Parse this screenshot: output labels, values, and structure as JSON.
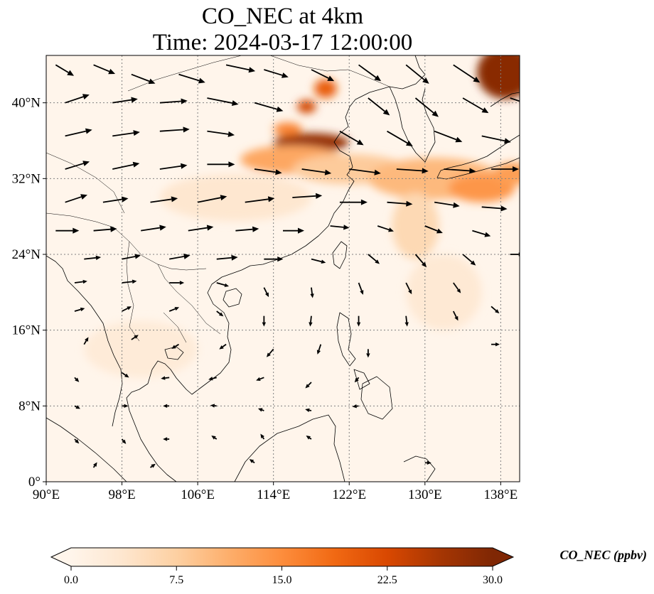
{
  "title": {
    "line1": "CO_NEC at 4km",
    "line2": "Time: 2024-03-17 12:00:00"
  },
  "map": {
    "extent": {
      "lon_min": 90,
      "lon_max": 140,
      "lat_min": 0,
      "lat_max": 45
    },
    "lon_ticks": [
      {
        "value": 90,
        "label": "90°E"
      },
      {
        "value": 98,
        "label": "98°E"
      },
      {
        "value": 106,
        "label": "106°E"
      },
      {
        "value": 114,
        "label": "114°E"
      },
      {
        "value": 122,
        "label": "122°E"
      },
      {
        "value": 130,
        "label": "130°E"
      },
      {
        "value": 138,
        "label": "138°E"
      }
    ],
    "lat_ticks": [
      {
        "value": 0,
        "label": "0°"
      },
      {
        "value": 8,
        "label": "8°N"
      },
      {
        "value": 16,
        "label": "16°N"
      },
      {
        "value": 24,
        "label": "24°N"
      },
      {
        "value": 32,
        "label": "32°N"
      },
      {
        "value": 40,
        "label": "40°N"
      }
    ],
    "gridlines": true,
    "background_color": "#fff5eb",
    "concentration_blobs": [
      {
        "lon": 118,
        "lat": 35.8,
        "rlon": 4.0,
        "rlat": 1.0,
        "value": 28
      },
      {
        "lon": 115.5,
        "lat": 37.2,
        "rlon": 1.5,
        "rlat": 0.7,
        "value": 16
      },
      {
        "lon": 117.5,
        "lat": 39.6,
        "rlon": 1.0,
        "rlat": 0.7,
        "value": 23
      },
      {
        "lon": 119.5,
        "lat": 41.5,
        "rlon": 1.2,
        "rlat": 1.0,
        "value": 20
      },
      {
        "lon": 116,
        "lat": 34,
        "rlon": 5.5,
        "rlat": 1.5,
        "value": 12
      },
      {
        "lon": 122,
        "lat": 33,
        "rlon": 6,
        "rlat": 1.6,
        "value": 8
      },
      {
        "lon": 131,
        "lat": 32,
        "rlon": 7,
        "rlat": 2.2,
        "value": 10
      },
      {
        "lon": 136,
        "lat": 31,
        "rlon": 3.5,
        "rlat": 1.5,
        "value": 14
      },
      {
        "lon": 139.2,
        "lat": 32.5,
        "rlon": 2.0,
        "rlat": 1.2,
        "value": 13
      },
      {
        "lon": 129,
        "lat": 27,
        "rlon": 2.5,
        "rlat": 3.5,
        "value": 6
      },
      {
        "lon": 138.5,
        "lat": 43.2,
        "rlon": 3.0,
        "rlat": 2.8,
        "value": 29
      },
      {
        "lon": 132,
        "lat": 20,
        "rlon": 4,
        "rlat": 4,
        "value": 3
      },
      {
        "lon": 100,
        "lat": 14,
        "rlon": 6,
        "rlat": 3,
        "value": 2.5
      },
      {
        "lon": 110,
        "lat": 30,
        "rlon": 8,
        "rlat": 2.5,
        "value": 3.5
      }
    ],
    "wind_vectors": [
      {
        "lon": 91,
        "lat": 44,
        "u": 1.0,
        "v": -0.6,
        "s": 1.0
      },
      {
        "lon": 95,
        "lat": 44,
        "u": 1.2,
        "v": -0.5,
        "s": 1.1
      },
      {
        "lon": 99,
        "lat": 43,
        "u": 1.3,
        "v": -0.5,
        "s": 1.2
      },
      {
        "lon": 104,
        "lat": 43,
        "u": 1.3,
        "v": -0.4,
        "s": 1.3
      },
      {
        "lon": 109,
        "lat": 44,
        "u": 1.4,
        "v": -0.3,
        "s": 1.4
      },
      {
        "lon": 113,
        "lat": 43.5,
        "u": 1.3,
        "v": -0.4,
        "s": 1.2
      },
      {
        "lon": 118,
        "lat": 43.5,
        "u": 1.2,
        "v": -0.6,
        "s": 1.2
      },
      {
        "lon": 123,
        "lat": 44,
        "u": 1.1,
        "v": -0.8,
        "s": 1.3
      },
      {
        "lon": 128,
        "lat": 44,
        "u": 1.1,
        "v": -0.9,
        "s": 1.4
      },
      {
        "lon": 133,
        "lat": 44,
        "u": 1.2,
        "v": -0.8,
        "s": 1.5
      },
      {
        "lon": 92,
        "lat": 40,
        "u": 1.2,
        "v": 0.4,
        "s": 1.2
      },
      {
        "lon": 97,
        "lat": 40,
        "u": 1.3,
        "v": 0.2,
        "s": 1.2
      },
      {
        "lon": 102,
        "lat": 40,
        "u": 1.4,
        "v": 0.1,
        "s": 1.3
      },
      {
        "lon": 107,
        "lat": 40.5,
        "u": 1.5,
        "v": -0.3,
        "s": 1.5
      },
      {
        "lon": 112,
        "lat": 40,
        "u": 1.4,
        "v": -0.4,
        "s": 1.4
      },
      {
        "lon": 124,
        "lat": 40.5,
        "u": 1.0,
        "v": -0.8,
        "s": 1.3
      },
      {
        "lon": 129,
        "lat": 40.5,
        "u": 1.1,
        "v": -0.9,
        "s": 1.4
      },
      {
        "lon": 134,
        "lat": 40.5,
        "u": 1.2,
        "v": -0.7,
        "s": 1.4
      },
      {
        "lon": 139,
        "lat": 40.5,
        "u": 1.2,
        "v": -0.4,
        "s": 1.2
      },
      {
        "lon": 92,
        "lat": 36.5,
        "u": 1.3,
        "v": 0.3,
        "s": 1.3
      },
      {
        "lon": 97,
        "lat": 36.5,
        "u": 1.4,
        "v": 0.2,
        "s": 1.3
      },
      {
        "lon": 102,
        "lat": 37,
        "u": 1.5,
        "v": 0.1,
        "s": 1.4
      },
      {
        "lon": 107,
        "lat": 37,
        "u": 1.4,
        "v": -0.2,
        "s": 1.3
      },
      {
        "lon": 121,
        "lat": 37,
        "u": 1.2,
        "v": -0.7,
        "s": 1.3
      },
      {
        "lon": 126,
        "lat": 37,
        "u": 1.2,
        "v": -0.7,
        "s": 1.4
      },
      {
        "lon": 131,
        "lat": 37,
        "u": 1.3,
        "v": -0.5,
        "s": 1.4
      },
      {
        "lon": 136,
        "lat": 36.5,
        "u": 1.4,
        "v": -0.3,
        "s": 1.4
      },
      {
        "lon": 92,
        "lat": 33,
        "u": 1.3,
        "v": 0.4,
        "s": 1.2
      },
      {
        "lon": 97,
        "lat": 33,
        "u": 1.4,
        "v": 0.3,
        "s": 1.3
      },
      {
        "lon": 102,
        "lat": 33,
        "u": 1.4,
        "v": 0.2,
        "s": 1.3
      },
      {
        "lon": 107,
        "lat": 33.5,
        "u": 1.4,
        "v": 0.0,
        "s": 1.3
      },
      {
        "lon": 112,
        "lat": 33,
        "u": 1.4,
        "v": -0.2,
        "s": 1.3
      },
      {
        "lon": 117,
        "lat": 33,
        "u": 1.4,
        "v": -0.2,
        "s": 1.4
      },
      {
        "lon": 122,
        "lat": 33,
        "u": 1.5,
        "v": -0.2,
        "s": 1.5
      },
      {
        "lon": 127,
        "lat": 33,
        "u": 1.5,
        "v": -0.1,
        "s": 1.5
      },
      {
        "lon": 132,
        "lat": 33,
        "u": 1.5,
        "v": -0.1,
        "s": 1.5
      },
      {
        "lon": 137,
        "lat": 33,
        "u": 1.4,
        "v": 0.0,
        "s": 1.3
      },
      {
        "lon": 92,
        "lat": 29.5,
        "u": 1.2,
        "v": 0.4,
        "s": 1.1
      },
      {
        "lon": 96,
        "lat": 29.5,
        "u": 1.3,
        "v": 0.2,
        "s": 1.2
      },
      {
        "lon": 101,
        "lat": 29.5,
        "u": 1.4,
        "v": 0.2,
        "s": 1.3
      },
      {
        "lon": 106,
        "lat": 29.5,
        "u": 1.5,
        "v": 0.3,
        "s": 1.4
      },
      {
        "lon": 111,
        "lat": 29.5,
        "u": 1.5,
        "v": 0.2,
        "s": 1.4
      },
      {
        "lon": 116,
        "lat": 30,
        "u": 1.5,
        "v": 0.1,
        "s": 1.4
      },
      {
        "lon": 121,
        "lat": 29.5,
        "u": 1.4,
        "v": 0.0,
        "s": 1.3
      },
      {
        "lon": 126,
        "lat": 29.5,
        "u": 1.3,
        "v": -0.1,
        "s": 1.2
      },
      {
        "lon": 131,
        "lat": 29.5,
        "u": 1.3,
        "v": -0.2,
        "s": 1.2
      },
      {
        "lon": 136,
        "lat": 29,
        "u": 1.3,
        "v": -0.1,
        "s": 1.2
      },
      {
        "lon": 91,
        "lat": 26.5,
        "u": 1.2,
        "v": 0.0,
        "s": 1.1
      },
      {
        "lon": 95,
        "lat": 26.5,
        "u": 1.2,
        "v": 0.1,
        "s": 1.1
      },
      {
        "lon": 100,
        "lat": 26.5,
        "u": 1.3,
        "v": 0.2,
        "s": 1.2
      },
      {
        "lon": 105,
        "lat": 26.5,
        "u": 1.3,
        "v": 0.2,
        "s": 1.2
      },
      {
        "lon": 110,
        "lat": 26.5,
        "u": 1.2,
        "v": 0.1,
        "s": 1.1
      },
      {
        "lon": 115,
        "lat": 26.5,
        "u": 1.1,
        "v": 0.0,
        "s": 1.0
      },
      {
        "lon": 120,
        "lat": 27,
        "u": 1.0,
        "v": -0.1,
        "s": 0.9
      },
      {
        "lon": 125,
        "lat": 27,
        "u": 0.9,
        "v": -0.3,
        "s": 0.8
      },
      {
        "lon": 130,
        "lat": 27,
        "u": 1.0,
        "v": -0.4,
        "s": 0.9
      },
      {
        "lon": 135,
        "lat": 26.5,
        "u": 1.0,
        "v": -0.3,
        "s": 0.9
      },
      {
        "lon": 94,
        "lat": 23.5,
        "u": 0.9,
        "v": 0.1,
        "s": 0.8
      },
      {
        "lon": 98,
        "lat": 23.5,
        "u": 1.0,
        "v": 0.2,
        "s": 0.9
      },
      {
        "lon": 103,
        "lat": 23.5,
        "u": 1.1,
        "v": 0.2,
        "s": 1.0
      },
      {
        "lon": 108,
        "lat": 23.5,
        "u": 1.1,
        "v": 0.1,
        "s": 1.0
      },
      {
        "lon": 113,
        "lat": 23.5,
        "u": 1.0,
        "v": 0.0,
        "s": 0.9
      },
      {
        "lon": 118,
        "lat": 23.5,
        "u": 0.8,
        "v": -0.2,
        "s": 0.7
      },
      {
        "lon": 124,
        "lat": 24,
        "u": 0.6,
        "v": -0.5,
        "s": 0.7
      },
      {
        "lon": 129,
        "lat": 24,
        "u": 0.6,
        "v": -0.7,
        "s": 0.8
      },
      {
        "lon": 134,
        "lat": 24,
        "u": 0.7,
        "v": -0.6,
        "s": 0.8
      },
      {
        "lon": 139,
        "lat": 24,
        "u": 0.8,
        "v": 0.0,
        "s": 0.6
      },
      {
        "lon": 93,
        "lat": 21,
        "u": 0.8,
        "v": 0.1,
        "s": 0.6
      },
      {
        "lon": 98,
        "lat": 21,
        "u": 0.9,
        "v": 0.1,
        "s": 0.7
      },
      {
        "lon": 103,
        "lat": 21,
        "u": 0.9,
        "v": 0.0,
        "s": 0.7
      },
      {
        "lon": 108,
        "lat": 21,
        "u": 0.7,
        "v": -0.2,
        "s": 0.6
      },
      {
        "lon": 113,
        "lat": 20.5,
        "u": 0.3,
        "v": -0.6,
        "s": 0.5
      },
      {
        "lon": 118,
        "lat": 20.5,
        "u": 0.1,
        "v": -0.8,
        "s": 0.5
      },
      {
        "lon": 123,
        "lat": 21,
        "u": 0.3,
        "v": -0.8,
        "s": 0.6
      },
      {
        "lon": 128,
        "lat": 21,
        "u": 0.4,
        "v": -0.8,
        "s": 0.6
      },
      {
        "lon": 133,
        "lat": 21,
        "u": 0.5,
        "v": -0.7,
        "s": 0.6
      },
      {
        "lon": 93,
        "lat": 18,
        "u": 0.7,
        "v": 0.2,
        "s": 0.5
      },
      {
        "lon": 98,
        "lat": 18,
        "u": 0.6,
        "v": 0.3,
        "s": 0.5
      },
      {
        "lon": 103,
        "lat": 18,
        "u": 0.5,
        "v": 0.2,
        "s": 0.5
      },
      {
        "lon": 108,
        "lat": 18,
        "u": 0.4,
        "v": -0.3,
        "s": 0.4
      },
      {
        "lon": 113,
        "lat": 17.5,
        "u": 0.0,
        "v": -0.9,
        "s": 0.5
      },
      {
        "lon": 118,
        "lat": 17.5,
        "u": -0.1,
        "v": -0.9,
        "s": 0.5
      },
      {
        "lon": 123,
        "lat": 17.5,
        "u": 0.0,
        "v": -0.9,
        "s": 0.5
      },
      {
        "lon": 128,
        "lat": 17.5,
        "u": 0.1,
        "v": -0.9,
        "s": 0.5
      },
      {
        "lon": 133,
        "lat": 18,
        "u": 0.4,
        "v": -0.8,
        "s": 0.5
      },
      {
        "lon": 137,
        "lat": 18.5,
        "u": 0.7,
        "v": -0.6,
        "s": 0.5
      },
      {
        "lon": 94,
        "lat": 14.5,
        "u": 0.3,
        "v": 0.5,
        "s": 0.4
      },
      {
        "lon": 99,
        "lat": 15,
        "u": 0.6,
        "v": 0.4,
        "s": 0.4
      },
      {
        "lon": 104,
        "lat": 14.5,
        "u": -0.5,
        "v": -0.3,
        "s": 0.4
      },
      {
        "lon": 109,
        "lat": 14.5,
        "u": -0.7,
        "v": -0.5,
        "s": 0.4
      },
      {
        "lon": 114,
        "lat": 14,
        "u": -0.6,
        "v": -0.7,
        "s": 0.5
      },
      {
        "lon": 119,
        "lat": 14.5,
        "u": -0.3,
        "v": -0.9,
        "s": 0.5
      },
      {
        "lon": 124,
        "lat": 14,
        "u": 0.0,
        "v": -0.9,
        "s": 0.4
      },
      {
        "lon": 137,
        "lat": 14.5,
        "u": 0.9,
        "v": 0.0,
        "s": 0.4
      },
      {
        "lon": 93,
        "lat": 11,
        "u": 0.5,
        "v": -0.5,
        "s": 0.3
      },
      {
        "lon": 98,
        "lat": 11.5,
        "u": 0.6,
        "v": -0.4,
        "s": 0.4
      },
      {
        "lon": 103,
        "lat": 11,
        "u": -0.8,
        "v": -0.1,
        "s": 0.4
      },
      {
        "lon": 108,
        "lat": 11,
        "u": -0.8,
        "v": -0.2,
        "s": 0.4
      },
      {
        "lon": 113,
        "lat": 11,
        "u": -0.8,
        "v": -0.3,
        "s": 0.4
      },
      {
        "lon": 118,
        "lat": 10.5,
        "u": -0.6,
        "v": -0.6,
        "s": 0.4
      },
      {
        "lon": 123,
        "lat": 11,
        "u": -0.5,
        "v": -0.6,
        "s": 0.3
      },
      {
        "lon": 93,
        "lat": 8,
        "u": 0.6,
        "v": -0.3,
        "s": 0.3
      },
      {
        "lon": 98,
        "lat": 8,
        "u": 0.8,
        "v": 0.0,
        "s": 0.3
      },
      {
        "lon": 103,
        "lat": 8,
        "u": -0.9,
        "v": 0.0,
        "s": 0.3
      },
      {
        "lon": 108,
        "lat": 8,
        "u": -0.9,
        "v": 0.1,
        "s": 0.3
      },
      {
        "lon": 113,
        "lat": 7.5,
        "u": -0.8,
        "v": 0.3,
        "s": 0.3
      },
      {
        "lon": 118,
        "lat": 7.5,
        "u": -0.9,
        "v": 0.2,
        "s": 0.3
      },
      {
        "lon": 123,
        "lat": 8,
        "u": -0.9,
        "v": -0.1,
        "s": 0.3
      },
      {
        "lon": 93,
        "lat": 4.5,
        "u": 0.6,
        "v": -0.6,
        "s": 0.3
      },
      {
        "lon": 98,
        "lat": 4.5,
        "u": 0.5,
        "v": -0.6,
        "s": 0.3
      },
      {
        "lon": 103,
        "lat": 4.5,
        "u": -0.8,
        "v": 0.0,
        "s": 0.3
      },
      {
        "lon": 108,
        "lat": 4.5,
        "u": -0.6,
        "v": 0.4,
        "s": 0.3
      },
      {
        "lon": 113,
        "lat": 4.5,
        "u": -0.4,
        "v": 0.6,
        "s": 0.3
      },
      {
        "lon": 118,
        "lat": 4.5,
        "u": -0.6,
        "v": 0.4,
        "s": 0.3
      },
      {
        "lon": 95,
        "lat": 1.5,
        "u": 0.4,
        "v": 0.6,
        "s": 0.3
      },
      {
        "lon": 101,
        "lat": 1.5,
        "u": 0.7,
        "v": 0.5,
        "s": 0.3
      },
      {
        "lon": 112,
        "lat": 2,
        "u": -0.7,
        "v": 0.5,
        "s": 0.3
      },
      {
        "lon": 130,
        "lat": 2,
        "u": 0.9,
        "v": 0.0,
        "s": 0.3
      }
    ]
  },
  "colorbar": {
    "min": 0.0,
    "max": 30.0,
    "ticks": [
      "0.0",
      "7.5",
      "15.0",
      "22.5",
      "30.0"
    ],
    "label": "CO_NEC (ppbv)",
    "colors": [
      "#fff5eb",
      "#fee6ce",
      "#fdd0a2",
      "#fdae6b",
      "#fd8d3c",
      "#f16913",
      "#d94801",
      "#a63603",
      "#7f2704"
    ]
  }
}
